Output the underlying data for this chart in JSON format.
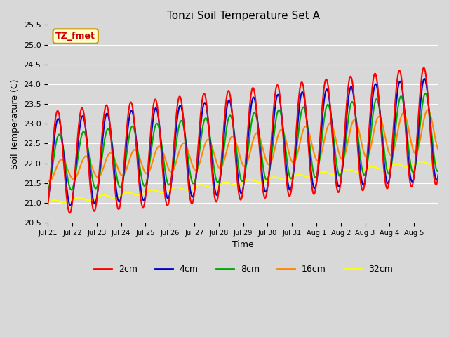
{
  "title": "Tonzi Soil Temperature Set A",
  "xlabel": "Time",
  "ylabel": "Soil Temperature (C)",
  "ylim": [
    20.5,
    25.5
  ],
  "annotation_text": "TZ_fmet",
  "annotation_bg": "#ffffcc",
  "annotation_border": "#cc9900",
  "annotation_text_color": "#cc0000",
  "legend_labels": [
    "2cm",
    "4cm",
    "8cm",
    "16cm",
    "32cm"
  ],
  "line_colors": [
    "#ff0000",
    "#0000cc",
    "#00aa00",
    "#ff8800",
    "#ffff00"
  ],
  "line_widths": [
    1.5,
    1.5,
    1.5,
    1.5,
    1.5
  ],
  "x_tick_labels": [
    "Jul 21",
    "Jul 22",
    "Jul 23",
    "Jul 24",
    "Jul 25",
    "Jul 26",
    "Jul 27",
    "Jul 28",
    "Jul 29",
    "Jul 30",
    "Jul 31",
    "Aug 1",
    "Aug 2",
    "Aug 3",
    "Aug 4",
    "Aug 5"
  ],
  "num_days": 16,
  "points_per_day": 48
}
